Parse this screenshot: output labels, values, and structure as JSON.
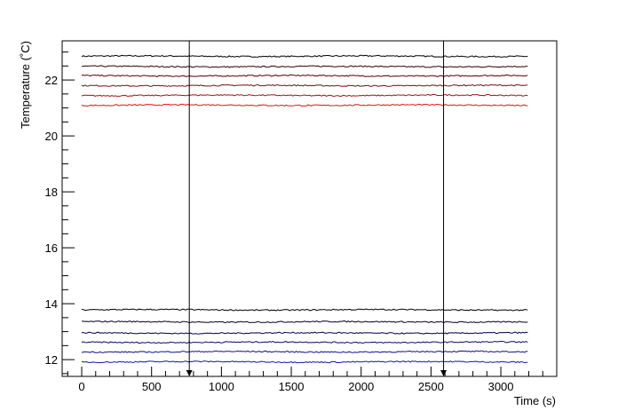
{
  "chart_data": {
    "type": "line",
    "xlabel": "Time (s)",
    "ylabel": "Temperature (˚C)",
    "xlim": [
      -140,
      3400
    ],
    "ylim": [
      11.4,
      23.4
    ],
    "x_ticks": [
      0,
      500,
      1000,
      1500,
      2000,
      2500,
      3000
    ],
    "y_ticks": [
      12,
      14,
      16,
      18,
      20,
      22
    ],
    "x_tick_labels": [
      "0",
      "500",
      "1000",
      "1500",
      "2000",
      "2500",
      "3000"
    ],
    "y_tick_labels": [
      "12",
      "14",
      "16",
      "18",
      "20",
      "22"
    ],
    "x_range_of_series": [
      0,
      3200
    ],
    "grid": false,
    "legend": "none",
    "markers": [
      {
        "x": 770,
        "style": "vertical-arrow"
      },
      {
        "x": 2590,
        "style": "vertical-arrow"
      }
    ],
    "series": [
      {
        "color": "#000000",
        "level": 22.85
      },
      {
        "color": "#330000",
        "level": 22.48
      },
      {
        "color": "#550000",
        "level": 22.15
      },
      {
        "color": "#771010",
        "level": 21.8
      },
      {
        "color": "#aa1010",
        "level": 21.45
      },
      {
        "color": "#dd1515",
        "level": 21.1
      },
      {
        "color": "#000000",
        "level": 13.78
      },
      {
        "color": "#000022",
        "level": 13.35
      },
      {
        "color": "#000044",
        "level": 12.95
      },
      {
        "color": "#0a0a66",
        "level": 12.62
      },
      {
        "color": "#10108a",
        "level": 12.28
      },
      {
        "color": "#1515b0",
        "level": 11.92
      }
    ]
  }
}
